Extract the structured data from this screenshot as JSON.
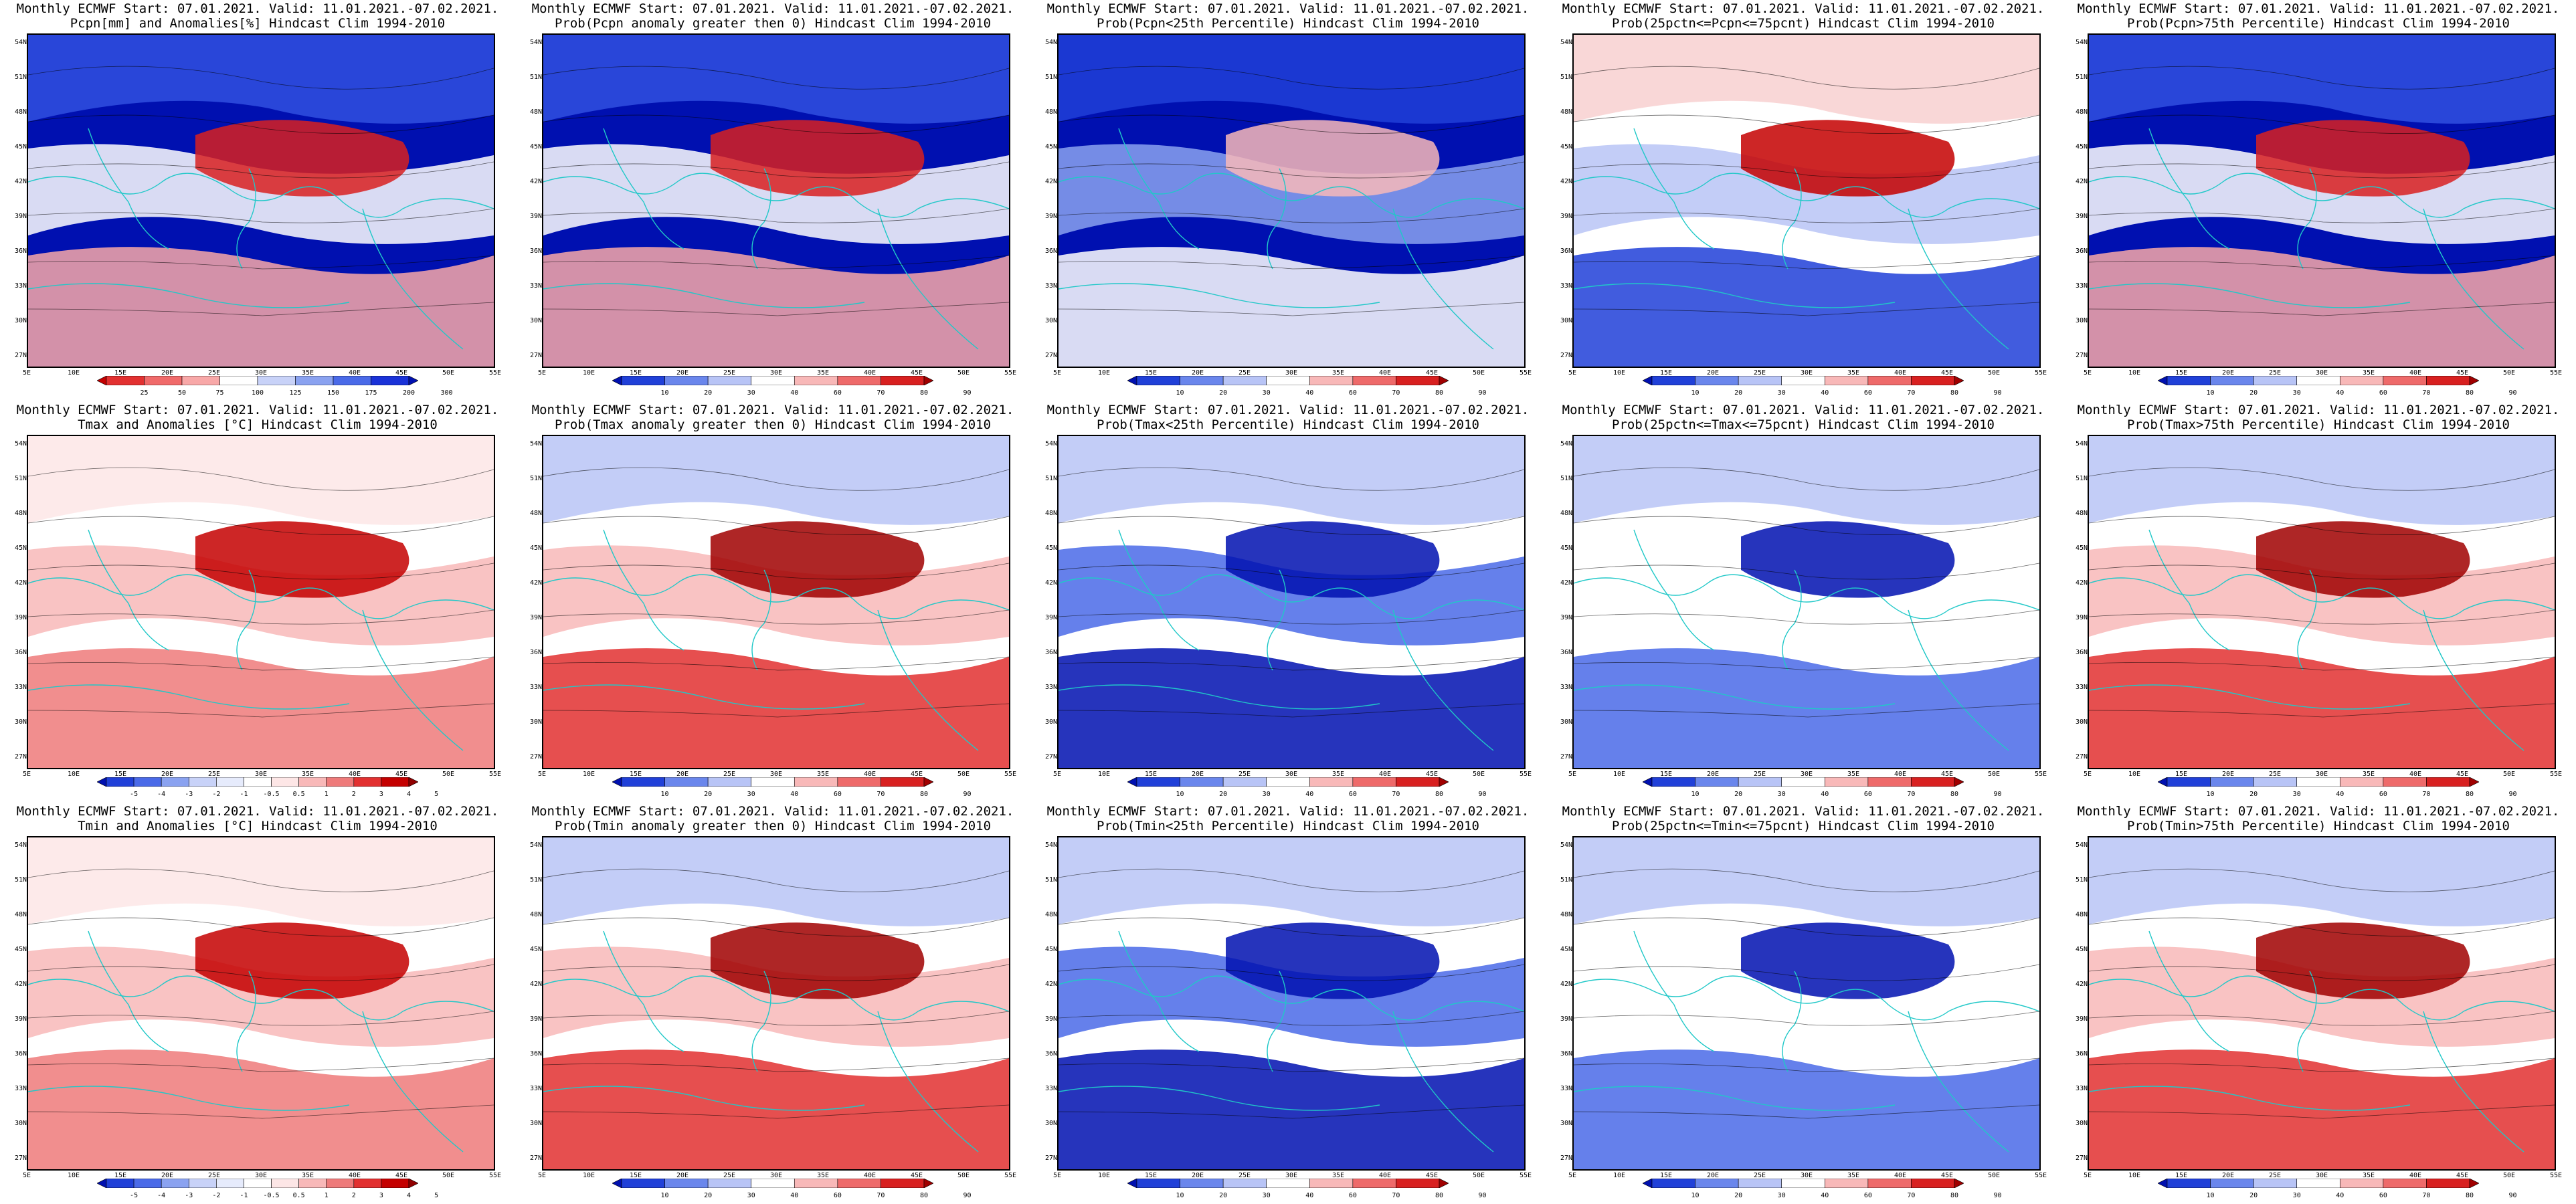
{
  "header_line": "Monthly ECMWF Start: 07.01.2021. Valid: 11.01.2021.-07.02.2021.",
  "lat_labels": [
    "54N",
    "51N",
    "48N",
    "45N",
    "42N",
    "39N",
    "36N",
    "33N",
    "30N",
    "27N"
  ],
  "lon_labels": [
    "5E",
    "10E",
    "15E",
    "20E",
    "25E",
    "30E",
    "35E",
    "40E",
    "45E",
    "50E",
    "55E"
  ],
  "colorbars": {
    "precip_anom": {
      "ticks": [
        "25",
        "50",
        "75",
        "100",
        "125",
        "150",
        "175",
        "200",
        "300"
      ],
      "colors": [
        "#c40000",
        "#e23030",
        "#f06a6a",
        "#f8a8a8",
        "#ffffff",
        "#c8d2f8",
        "#8aa2f0",
        "#4a6ae8",
        "#1a32d8",
        "#0010b0"
      ]
    },
    "prob": {
      "ticks": [
        "10",
        "20",
        "30",
        "40",
        "60",
        "70",
        "80",
        "90"
      ],
      "colors": [
        "#0010b0",
        "#2040d8",
        "#6a86ec",
        "#b8c4f6",
        "#ffffff",
        "#f8b8b8",
        "#ee6a6a",
        "#d82020",
        "#a00000"
      ]
    },
    "temp_anom": {
      "ticks": [
        "-5",
        "-4",
        "-3",
        "-2",
        "-1",
        "-0.5",
        "0.5",
        "1",
        "2",
        "3",
        "4",
        "5"
      ],
      "colors": [
        "#0010b0",
        "#2040d8",
        "#4a6ae8",
        "#8aa2f0",
        "#c8d2f8",
        "#e6ebfc",
        "#ffffff",
        "#fde6e6",
        "#f8b8b8",
        "#ee7a7a",
        "#e23030",
        "#c40000",
        "#900000"
      ]
    }
  },
  "colors": {
    "coast": "#20c8c8",
    "contour": "#000000",
    "blue_dark": "#0010b0",
    "red_dark": "#b00000"
  },
  "panels": [
    {
      "title2": "Pcpn[mm] and Anomalies[%] Hindcast Clim 1994-2010",
      "pattern": "pcpn_anom",
      "cbar": "precip_anom"
    },
    {
      "title2": "Prob(Pcpn anomaly greater then 0) Hindcast Clim 1994-2010",
      "pattern": "pcpn_anom",
      "cbar": "prob"
    },
    {
      "title2": "Prob(Pcpn<25th Percentile) Hindcast Clim 1994-2010",
      "pattern": "pcpn_low",
      "cbar": "prob"
    },
    {
      "title2": "Prob(25pctn<=Pcpn<=75pcnt) Hindcast Clim 1994-2010",
      "pattern": "pcpn_mid",
      "cbar": "prob"
    },
    {
      "title2": "Prob(Pcpn>75th Percentile) Hindcast Clim 1994-2010",
      "pattern": "pcpn_anom",
      "cbar": "prob"
    },
    {
      "title2": "Tmax and Anomalies [°C] Hindcast Clim 1994-2010",
      "pattern": "t_anom",
      "cbar": "temp_anom"
    },
    {
      "title2": "Prob(Tmax anomaly greater then 0) Hindcast Clim 1994-2010",
      "pattern": "t_hot",
      "cbar": "prob"
    },
    {
      "title2": "Prob(Tmax<25th Percentile) Hindcast Clim 1994-2010",
      "pattern": "t_cold",
      "cbar": "prob"
    },
    {
      "title2": "Prob(25pctn<=Tmax<=75pcnt) Hindcast Clim 1994-2010",
      "pattern": "t_mid",
      "cbar": "prob"
    },
    {
      "title2": "Prob(Tmax>75th Percentile) Hindcast Clim 1994-2010",
      "pattern": "t_hot",
      "cbar": "prob"
    },
    {
      "title2": "Tmin and Anomalies [°C] Hindcast Clim 1994-2010",
      "pattern": "t_anom",
      "cbar": "temp_anom"
    },
    {
      "title2": "Prob(Tmin anomaly greater then 0) Hindcast Clim 1994-2010",
      "pattern": "t_hot",
      "cbar": "prob"
    },
    {
      "title2": "Prob(Tmin<25th Percentile) Hindcast Clim 1994-2010",
      "pattern": "t_cold",
      "cbar": "prob"
    },
    {
      "title2": "Prob(25pctn<=Tmin<=75pcnt) Hindcast Clim 1994-2010",
      "pattern": "t_mid",
      "cbar": "prob"
    },
    {
      "title2": "Prob(Tmin>75th Percentile) Hindcast Clim 1994-2010",
      "pattern": "t_hot",
      "cbar": "prob"
    }
  ]
}
